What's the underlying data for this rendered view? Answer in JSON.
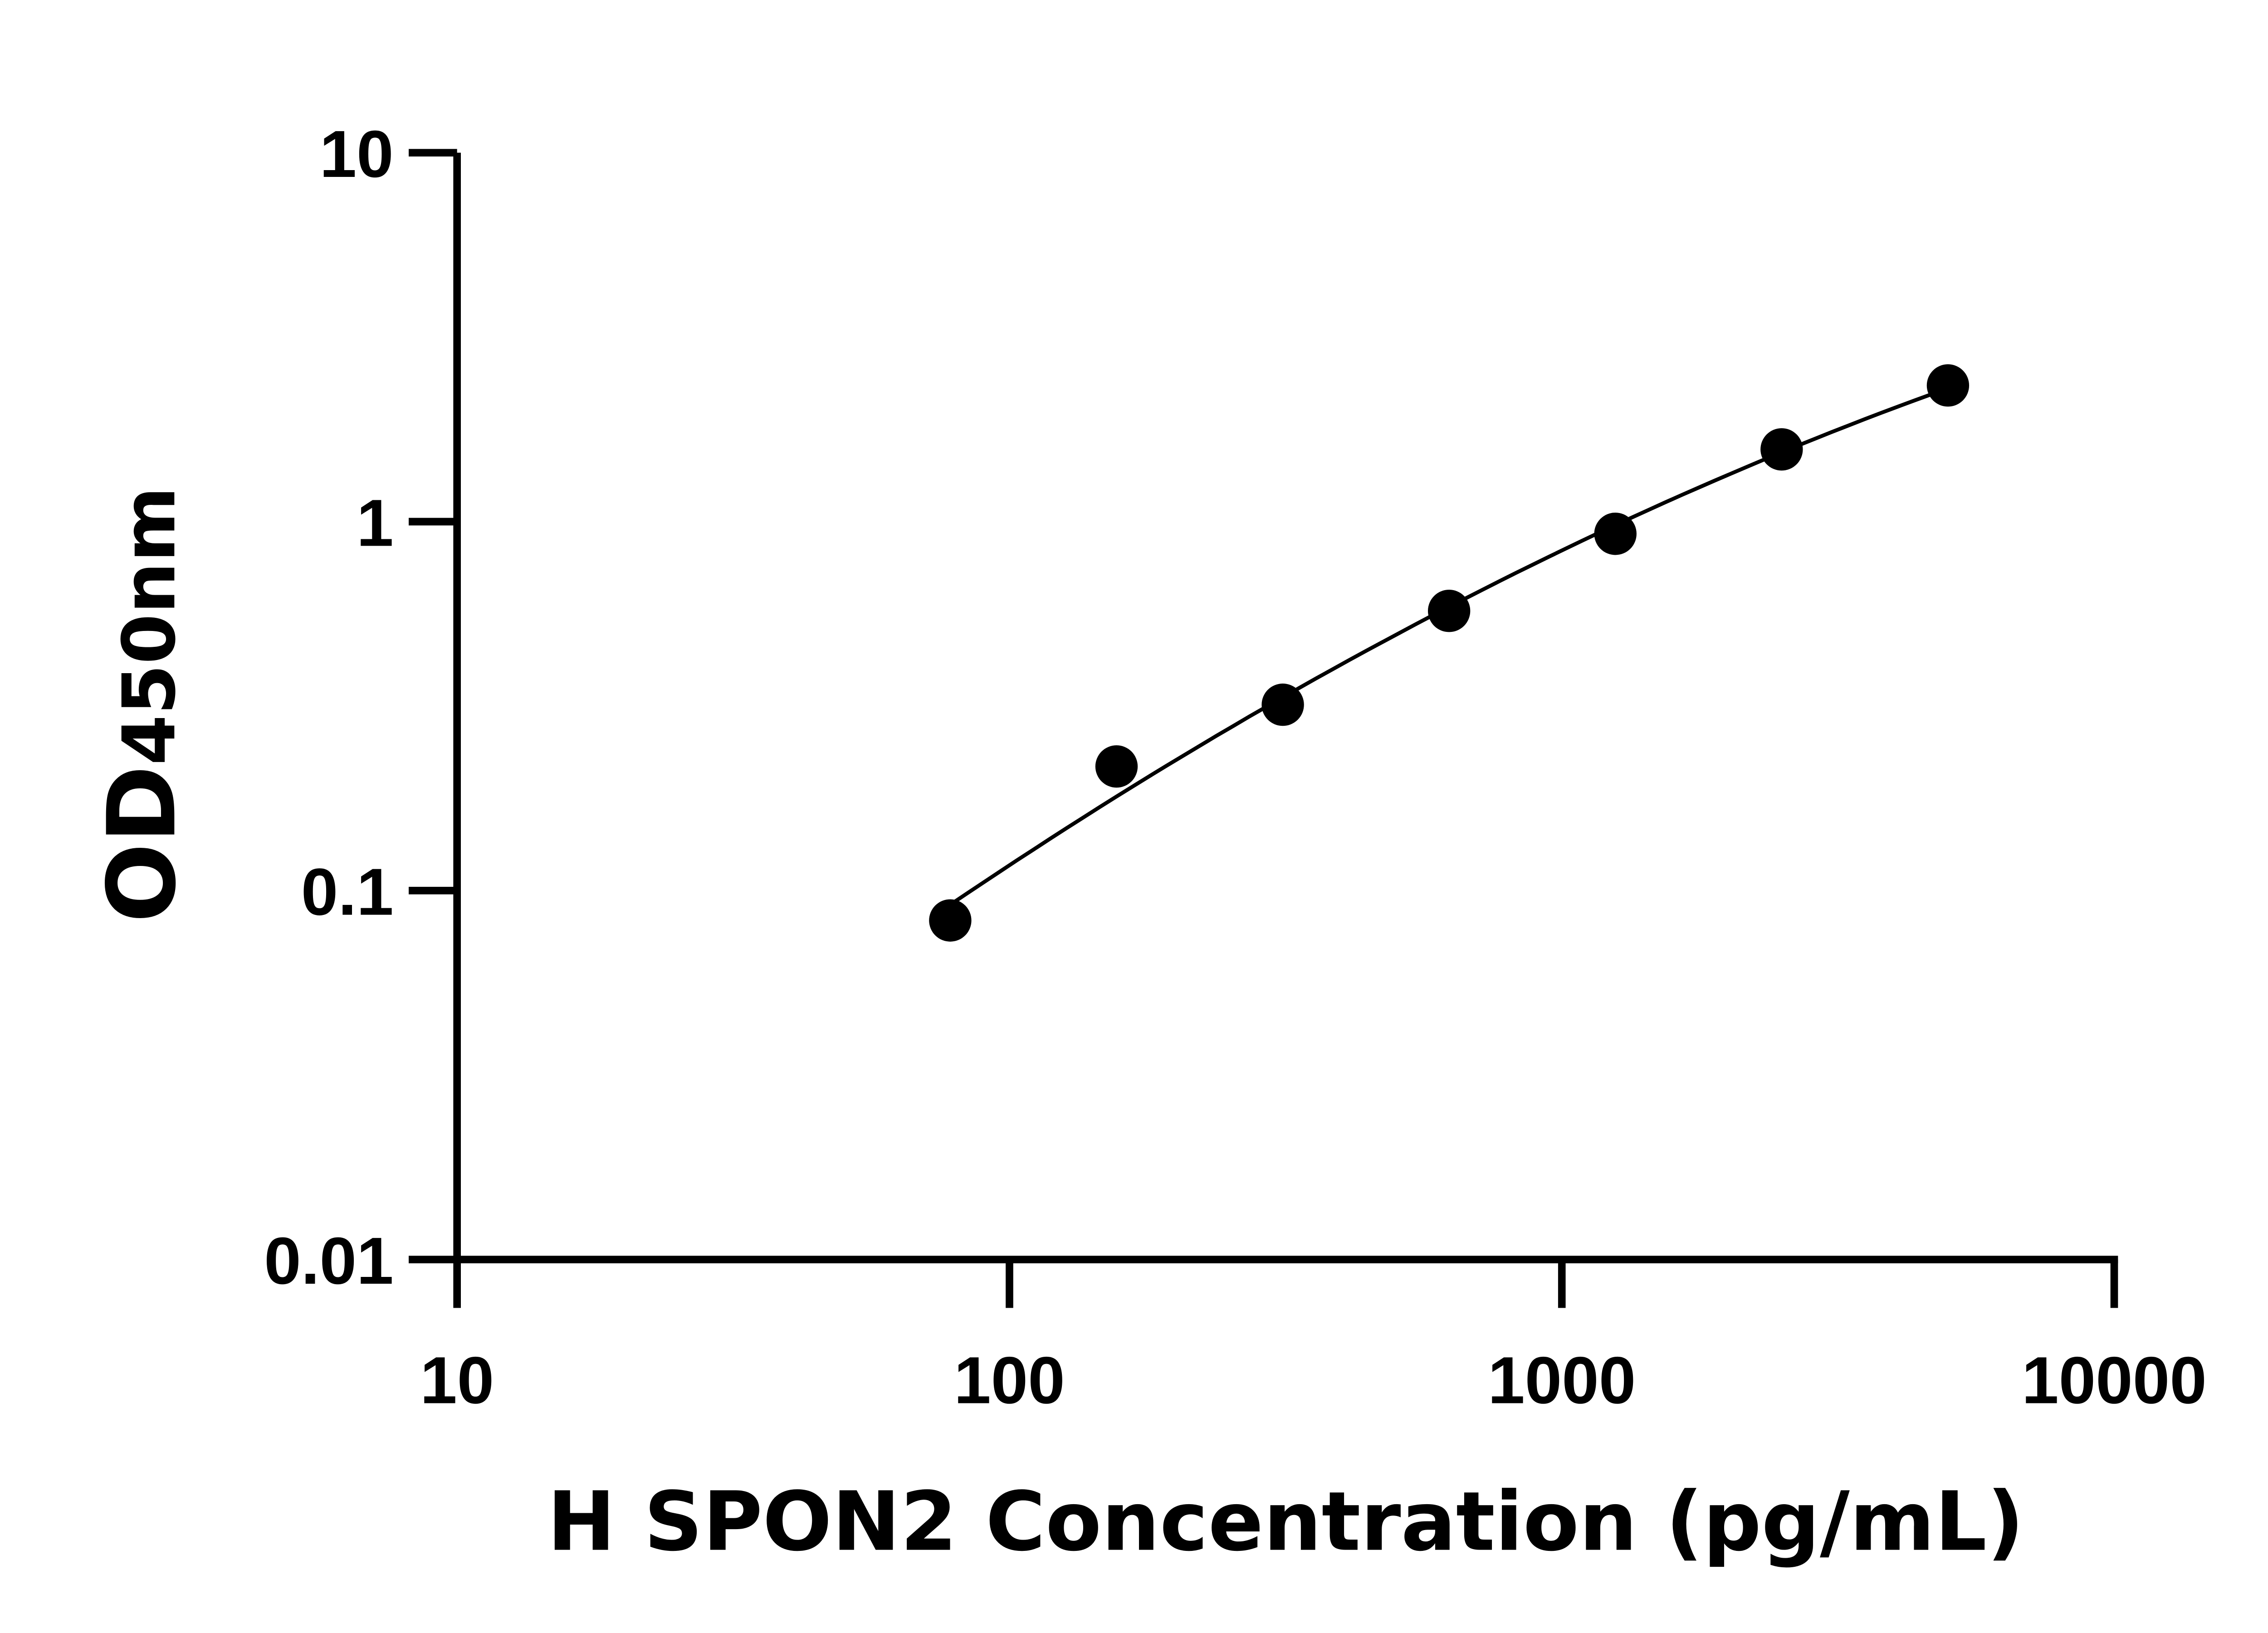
{
  "chart_data": {
    "type": "scatter",
    "title": "",
    "xlabel": "H SPON2 Concentration (pg/mL)",
    "ylabel_main": "OD",
    "ylabel_sub": "450nm",
    "x_scale": "log",
    "y_scale": "log",
    "xlim": [
      10,
      10000
    ],
    "ylim": [
      0.01,
      10
    ],
    "x_ticks": [
      "10",
      "100",
      "1000",
      "10000"
    ],
    "y_ticks": [
      "0.01",
      "0.1",
      "1",
      "10"
    ],
    "grid": false,
    "legend": "none",
    "fit_line": true,
    "marker_color": "#000000",
    "line_color": "#000000",
    "series": [
      {
        "x": [
          78.125,
          156.25,
          312.5,
          625,
          1250,
          2500,
          5000
        ],
        "y": [
          0.083,
          0.217,
          0.319,
          0.573,
          0.927,
          1.57,
          2.34
        ]
      }
    ]
  }
}
